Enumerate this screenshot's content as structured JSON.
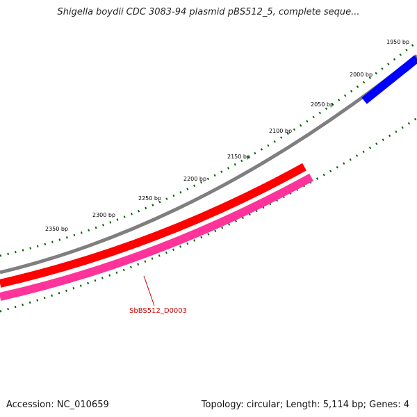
{
  "title": "Shigella boydii CDC 3083-94 plasmid pBS512_5, complete seque...",
  "footer": {
    "accession": "Accession: NC_010659",
    "summary": "Topology: circular; Length: 5,114 bp; Genes: 4"
  },
  "scale": {
    "tick_labels": [
      "1950 bp",
      "2000 bp",
      "2050 bp",
      "2100 bp",
      "2150 bp",
      "2200 bp",
      "2250 bp",
      "2300 bp",
      "2350 bp"
    ]
  },
  "features": [
    {
      "label": "",
      "color": "#0000ff",
      "track": "outer"
    },
    {
      "label": "",
      "color": "#ff0000",
      "track": "forward"
    },
    {
      "label": "SbBS512_D0003",
      "color": "#ff3399",
      "track": "reverse",
      "label_color": "#cc0000"
    }
  ],
  "colors": {
    "backbone": "#888888",
    "ticks": "#006600"
  }
}
